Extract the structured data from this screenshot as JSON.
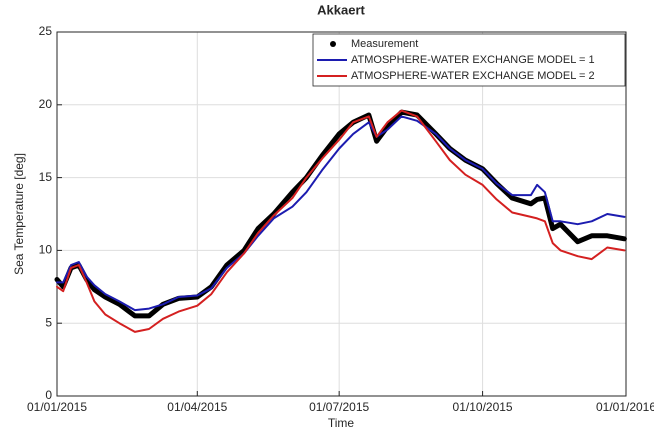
{
  "chart_data": {
    "type": "line",
    "title": "Akkaert",
    "xlabel": "Time",
    "ylabel": "Sea Temperature [deg]",
    "x": [
      "2015-01-01",
      "2015-01-05",
      "2015-01-10",
      "2015-01-15",
      "2015-01-20",
      "2015-01-25",
      "2015-02-01",
      "2015-02-10",
      "2015-02-20",
      "2015-03-01",
      "2015-03-10",
      "2015-03-20",
      "2015-04-01",
      "2015-04-10",
      "2015-04-20",
      "2015-05-01",
      "2015-05-10",
      "2015-05-20",
      "2015-06-01",
      "2015-06-10",
      "2015-06-20",
      "2015-07-01",
      "2015-07-10",
      "2015-07-20",
      "2015-07-25",
      "2015-08-01",
      "2015-08-10",
      "2015-08-20",
      "2015-09-01",
      "2015-09-10",
      "2015-09-20",
      "2015-10-01",
      "2015-10-10",
      "2015-10-20",
      "2015-11-01",
      "2015-11-05",
      "2015-11-10",
      "2015-11-15",
      "2015-11-20",
      "2015-12-01",
      "2015-12-10",
      "2015-12-20",
      "2015-12-31"
    ],
    "series": [
      {
        "name": "Measurement",
        "color": "#000000",
        "marker": "dot",
        "values": [
          8.0,
          7.5,
          8.8,
          9.0,
          8.0,
          7.3,
          6.8,
          6.3,
          5.5,
          5.5,
          6.3,
          6.7,
          6.8,
          7.5,
          9.0,
          10.0,
          11.5,
          12.5,
          14.0,
          15.0,
          16.5,
          18.0,
          18.8,
          19.3,
          17.5,
          18.5,
          19.5,
          19.3,
          18.0,
          17.0,
          16.2,
          15.6,
          14.6,
          13.6,
          13.2,
          13.5,
          13.6,
          11.5,
          11.8,
          10.6,
          11.0,
          11.0,
          10.8
        ]
      },
      {
        "name": "ATMOSPHERE-WATER EXCHANGE MODEL = 1",
        "color": "#1c1cb0",
        "marker": "line",
        "values": [
          7.8,
          7.8,
          9.0,
          9.2,
          8.2,
          7.6,
          7.0,
          6.5,
          5.9,
          6.0,
          6.3,
          6.8,
          6.9,
          7.4,
          8.8,
          9.8,
          11.0,
          12.2,
          13.0,
          14.0,
          15.5,
          17.0,
          18.0,
          18.8,
          17.8,
          18.3,
          19.2,
          18.9,
          18.0,
          17.0,
          16.2,
          15.6,
          14.6,
          13.8,
          13.8,
          14.5,
          14.0,
          12.0,
          12.0,
          11.8,
          12.0,
          12.5,
          12.3
        ]
      },
      {
        "name": "ATMOSPHERE-WATER EXCHANGE MODEL = 2",
        "color": "#d42020",
        "marker": "line",
        "values": [
          7.5,
          7.2,
          8.8,
          9.0,
          7.8,
          6.5,
          5.6,
          5.0,
          4.4,
          4.6,
          5.3,
          5.8,
          6.2,
          7.0,
          8.5,
          9.8,
          11.2,
          12.4,
          13.6,
          15.0,
          16.3,
          17.6,
          18.8,
          19.2,
          17.8,
          18.8,
          19.6,
          19.2,
          17.5,
          16.2,
          15.2,
          14.5,
          13.5,
          12.6,
          12.3,
          12.2,
          12.0,
          10.5,
          10.0,
          9.6,
          9.4,
          10.2,
          10.0
        ]
      }
    ],
    "xlim": [
      "2015-01-01",
      "2016-01-01"
    ],
    "xticks": [
      {
        "value": "2015-01-01",
        "label": "01/01/2015"
      },
      {
        "value": "2015-04-01",
        "label": "01/04/2015"
      },
      {
        "value": "2015-07-01",
        "label": "01/07/2015"
      },
      {
        "value": "2015-10-01",
        "label": "01/10/2015"
      },
      {
        "value": "2016-01-01",
        "label": "01/01/2016"
      }
    ],
    "ylim": [
      0,
      25
    ],
    "yticks": [
      0,
      5,
      10,
      15,
      20,
      25
    ],
    "grid": true,
    "legend": "upper right"
  }
}
